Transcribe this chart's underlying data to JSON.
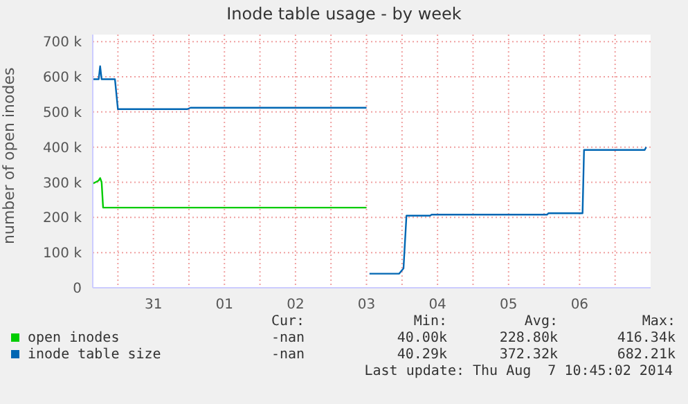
{
  "chart_data": {
    "type": "line",
    "title": "Inode table usage - by week",
    "ylabel": "number of open inodes",
    "x": [
      "2014-07-30T15:30",
      "2014-07-30T17:30",
      "2014-07-30T18:00",
      "2014-07-30T18:30",
      "2014-07-30T19:00",
      "2014-07-30T23:00",
      "2014-07-31T00:00",
      "2014-07-31T23:30",
      "2014-08-01T00:30",
      "2014-08-03T12:00",
      "2014-08-03T12:30",
      "2014-08-03T13:00",
      "2014-08-03T23:00",
      "2014-08-04T00:30",
      "2014-08-04T01:30",
      "2014-08-04T09:30",
      "2014-08-04T10:00",
      "2014-08-06T01:00",
      "2014-08-06T01:30",
      "2014-08-06T13:00",
      "2014-08-06T13:30",
      "2014-08-07T10:00",
      "2014-08-07T10:30"
    ],
    "series": [
      {
        "name": "open inodes",
        "color": "#00cc00",
        "values": [
          296000,
          305000,
          312000,
          300000,
          228000,
          228000,
          228000,
          228000,
          228000,
          228000,
          null,
          null,
          null,
          null,
          null,
          null,
          null,
          null,
          null,
          null,
          null,
          null,
          null
        ]
      },
      {
        "name": "inode table size",
        "color": "#0066b3",
        "values": [
          593000,
          593000,
          630000,
          593000,
          593000,
          593000,
          508000,
          508000,
          512000,
          512000,
          null,
          40000,
          40000,
          55000,
          205000,
          205000,
          208000,
          208000,
          212000,
          212000,
          392000,
          392000,
          400000
        ]
      }
    ],
    "xlim": [
      "2014-07-30T15:30",
      "2014-08-07T12:00"
    ],
    "xticks": [
      {
        "value": "2014-07-31T00:00",
        "label": null
      },
      {
        "value": "2014-07-31T12:00",
        "label": "31"
      },
      {
        "value": "2014-08-01T00:00",
        "label": null
      },
      {
        "value": "2014-08-01T12:00",
        "label": "01"
      },
      {
        "value": "2014-08-02T00:00",
        "label": null
      },
      {
        "value": "2014-08-02T12:00",
        "label": "02"
      },
      {
        "value": "2014-08-03T00:00",
        "label": null
      },
      {
        "value": "2014-08-03T12:00",
        "label": "03"
      },
      {
        "value": "2014-08-04T00:00",
        "label": null
      },
      {
        "value": "2014-08-04T12:00",
        "label": "04"
      },
      {
        "value": "2014-08-05T00:00",
        "label": null
      },
      {
        "value": "2014-08-05T12:00",
        "label": "05"
      },
      {
        "value": "2014-08-06T00:00",
        "label": null
      },
      {
        "value": "2014-08-06T12:00",
        "label": "06"
      },
      {
        "value": "2014-08-07T00:00",
        "label": null
      }
    ],
    "ylim": [
      0,
      720000
    ],
    "yticks": [
      {
        "value": 0,
        "label": "0"
      },
      {
        "value": 100000,
        "label": "100 k"
      },
      {
        "value": 200000,
        "label": "200 k"
      },
      {
        "value": 300000,
        "label": "300 k"
      },
      {
        "value": 400000,
        "label": "400 k"
      },
      {
        "value": 500000,
        "label": "500 k"
      },
      {
        "value": 600000,
        "label": "600 k"
      },
      {
        "value": 700000,
        "label": "700 k"
      }
    ],
    "grid": true,
    "legend": "bottom",
    "annotations": [
      "Cur:",
      "Min:",
      "Avg:",
      "Max:",
      "-nan",
      "40.00k",
      "228.80k",
      "416.34k",
      "-nan",
      "40.29k",
      "372.32k",
      "682.21k",
      "Last update: Thu Aug  7 10:45:02 2014"
    ]
  }
}
